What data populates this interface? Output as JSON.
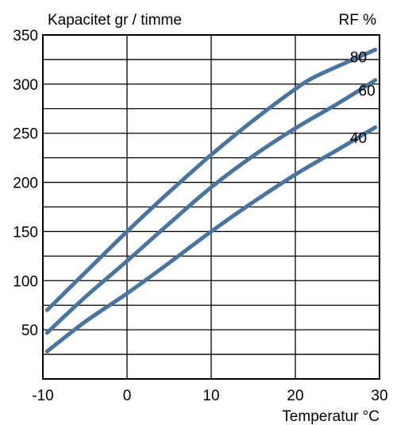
{
  "chart_data": {
    "type": "line",
    "ylabel": "Kapacitet gr / timme",
    "xlabel": "Temperatur °C",
    "legend_title": "RF %",
    "xlim": [
      -10,
      30
    ],
    "ylim": [
      0,
      350
    ],
    "x_ticks": [
      -10,
      0,
      10,
      20,
      30
    ],
    "y_ticks": [
      50,
      100,
      150,
      200,
      250,
      300,
      350
    ],
    "grid": true,
    "series_color": "#4a74a0",
    "series": [
      {
        "name": "80",
        "points": [
          [
            -9.5,
            70
          ],
          [
            -5,
            108
          ],
          [
            0,
            150
          ],
          [
            5,
            190
          ],
          [
            10,
            228
          ],
          [
            15,
            263
          ],
          [
            20,
            295
          ],
          [
            22,
            306
          ],
          [
            25,
            318
          ],
          [
            29.5,
            335
          ]
        ]
      },
      {
        "name": "60",
        "points": [
          [
            -9.5,
            47
          ],
          [
            -5,
            83
          ],
          [
            0,
            120
          ],
          [
            5,
            158
          ],
          [
            10,
            195
          ],
          [
            15,
            227
          ],
          [
            20,
            255
          ],
          [
            25,
            280
          ],
          [
            29.5,
            304
          ]
        ]
      },
      {
        "name": "40",
        "points": [
          [
            -9.5,
            28
          ],
          [
            -5,
            58
          ],
          [
            0,
            87
          ],
          [
            5,
            118
          ],
          [
            10,
            150
          ],
          [
            15,
            180
          ],
          [
            20,
            208
          ],
          [
            25,
            233
          ],
          [
            29.5,
            256
          ]
        ]
      }
    ]
  }
}
